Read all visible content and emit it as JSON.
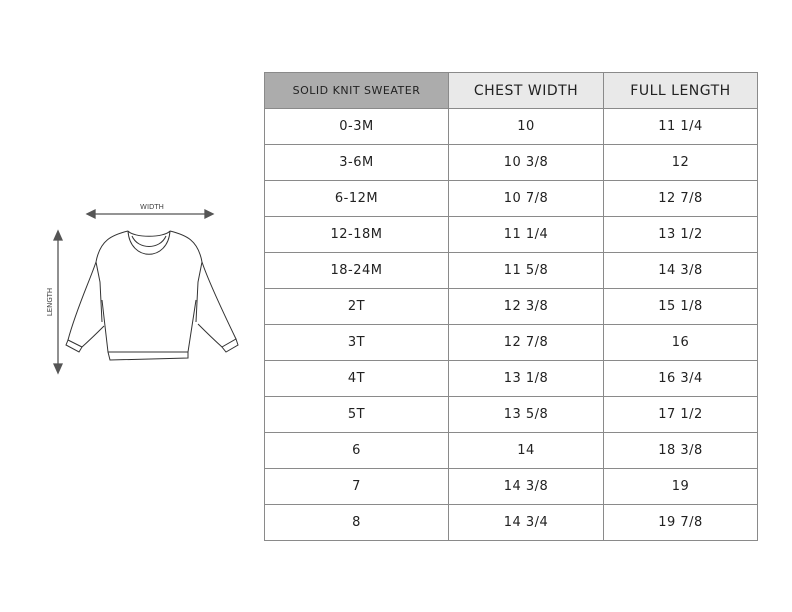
{
  "illustration": {
    "width_label": "WIDTH",
    "length_label": "LENGTH"
  },
  "table": {
    "headers": [
      "SOLID KNIT SWEATER",
      "CHEST WIDTH",
      "FULL LENGTH"
    ],
    "rows": [
      [
        "0-3M",
        "10",
        "11 1/4"
      ],
      [
        "3-6M",
        "10 3/8",
        "12"
      ],
      [
        "6-12M",
        "10 7/8",
        "12 7/8"
      ],
      [
        "12-18M",
        "11 1/4",
        "13 1/2"
      ],
      [
        "18-24M",
        "11 5/8",
        "14 3/8"
      ],
      [
        "2T",
        "12 3/8",
        "15 1/8"
      ],
      [
        "3T",
        "12 7/8",
        "16"
      ],
      [
        "4T",
        "13 1/8",
        "16 3/4"
      ],
      [
        "5T",
        "13 5/8",
        "17 1/2"
      ],
      [
        "6",
        "14",
        "18 3/8"
      ],
      [
        "7",
        "14 3/8",
        "19"
      ],
      [
        "8",
        "14 3/4",
        "19 7/8"
      ]
    ]
  }
}
